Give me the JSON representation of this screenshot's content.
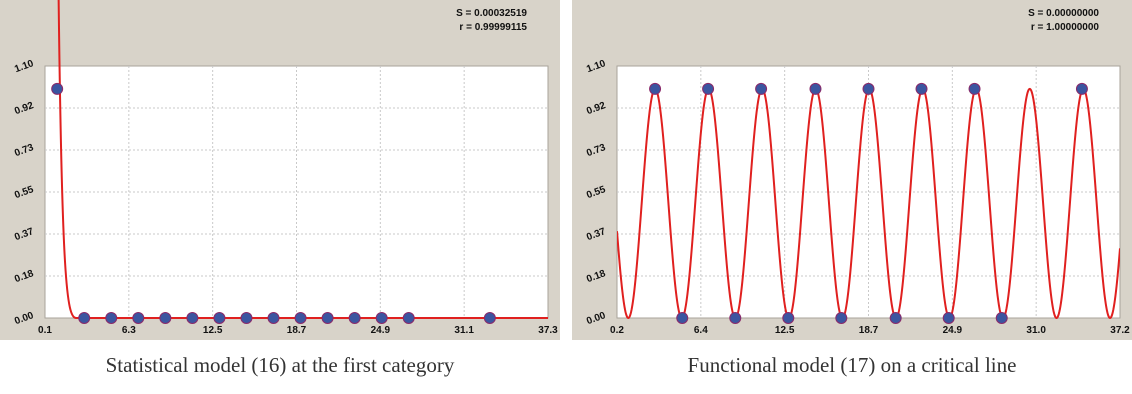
{
  "colors": {
    "panel_bg": "#d8d3c9",
    "plot_bg": "#ffffff",
    "grid": "#c9c9c9",
    "curve": "#e0201f",
    "point_fill": "#3b55a0",
    "point_edge": "#8a2a6a"
  },
  "chart_data": [
    {
      "type": "scatter",
      "stats": {
        "s_label": "S = 0.00032519",
        "r_label": "r = 0.99999115"
      },
      "xlim": [
        0.1,
        37.3
      ],
      "ylim": [
        0.0,
        1.1
      ],
      "xticks": [
        "0.1",
        "6.3",
        "12.5",
        "18.7",
        "24.9",
        "31.1",
        "37.3"
      ],
      "yticks": [
        "0.00",
        "0.18",
        "0.37",
        "0.55",
        "0.73",
        "0.92",
        "1.10"
      ],
      "grid": true,
      "points": {
        "x": [
          1.0,
          3.0,
          5.0,
          7.0,
          9.0,
          11.0,
          13.0,
          15.0,
          17.0,
          19.0,
          21.0,
          23.0,
          25.0,
          27.0,
          33.0
        ],
        "y": [
          1.0,
          0,
          0,
          0,
          0,
          0,
          0,
          0,
          0,
          0,
          0,
          0,
          0,
          0,
          0
        ]
      },
      "curve": {
        "type": "decay",
        "x_start": 1.1,
        "x_knee": 2.4
      },
      "caption": "Statistical model (16) at the first category"
    },
    {
      "type": "scatter",
      "stats": {
        "s_label": "S = 0.00000000",
        "r_label": "r = 1.00000000"
      },
      "xlim": [
        0.2,
        37.2
      ],
      "ylim": [
        0.0,
        1.1
      ],
      "xticks": [
        "0.2",
        "6.4",
        "12.5",
        "18.7",
        "24.9",
        "31.0",
        "37.2"
      ],
      "yticks": [
        "0.00",
        "0.18",
        "0.37",
        "0.55",
        "0.73",
        "0.92",
        "1.10"
      ],
      "grid": true,
      "points": {
        "x": [
          3.0,
          5.0,
          6.9,
          8.9,
          10.8,
          12.8,
          14.8,
          16.7,
          18.7,
          20.7,
          22.6,
          24.6,
          26.5,
          28.5,
          34.4
        ],
        "y": [
          1.0,
          0,
          1.0,
          0,
          1.0,
          0,
          1.0,
          0,
          1.0,
          0,
          1.0,
          0,
          1.0,
          0,
          1.0
        ]
      },
      "curve": {
        "type": "cosine",
        "period": 3.9374,
        "peak_x": 3.0
      },
      "caption": "Functional model (17) on a critical line"
    }
  ]
}
